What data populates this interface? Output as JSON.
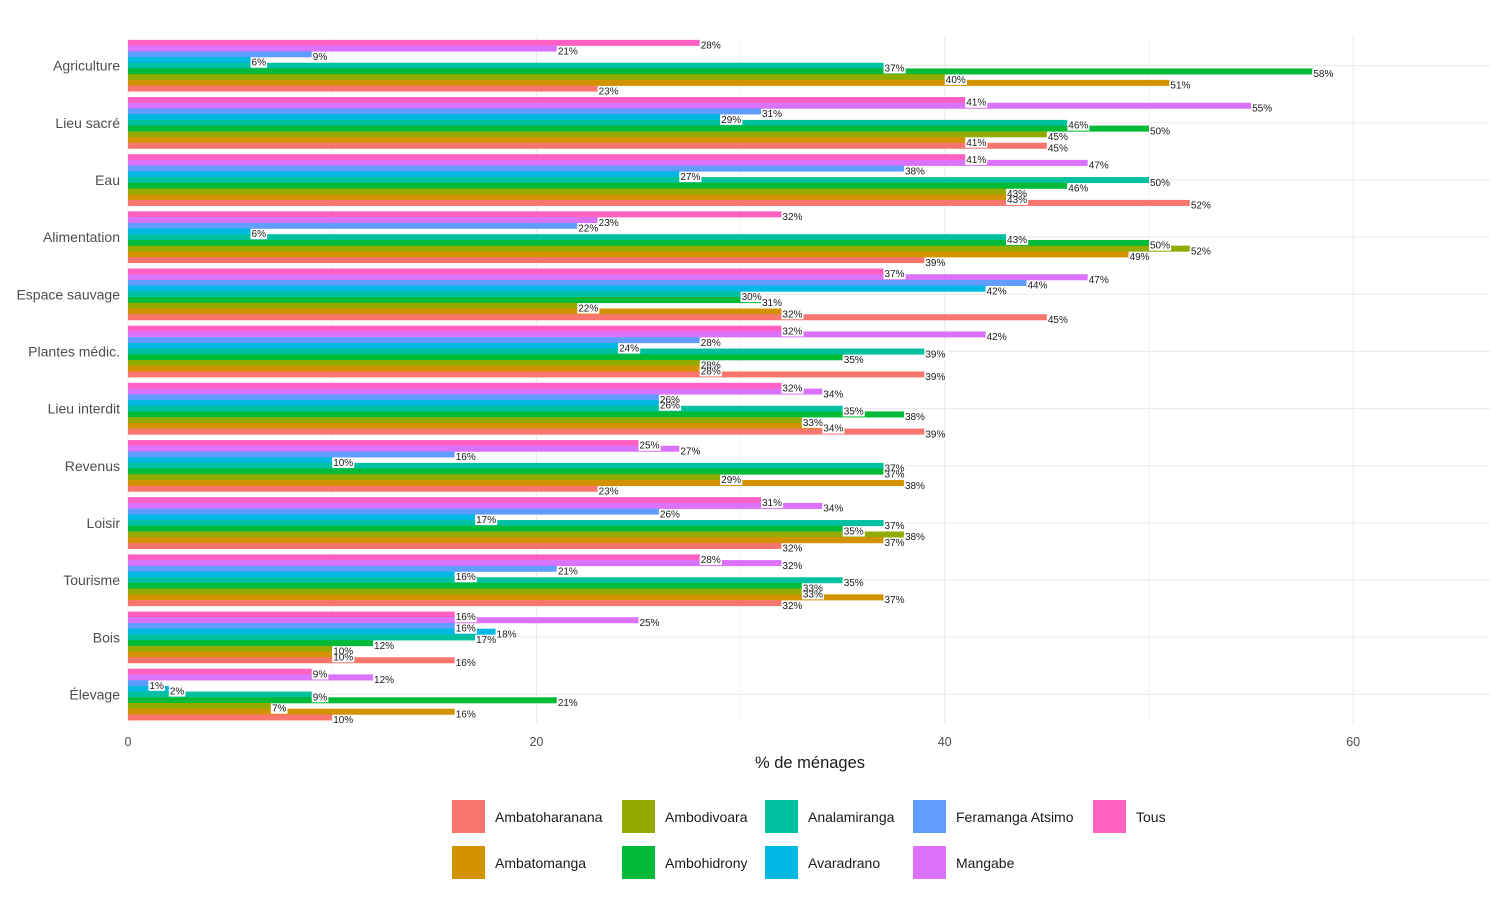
{
  "chart_data": {
    "type": "bar",
    "orientation": "horizontal",
    "title": "",
    "xlabel": "% de ménages",
    "ylabel": "",
    "xlim": [
      0,
      66.7
    ],
    "xticks": [
      0,
      20,
      40,
      60
    ],
    "grid": true,
    "legend_position": "bottom",
    "label_suffix": "%",
    "categories": [
      "Agriculture",
      "Lieu sacré",
      "Eau",
      "Alimentation",
      "Espace sauvage",
      "Plantes médic.",
      "Lieu interdit",
      "Revenus",
      "Loisir",
      "Tourisme",
      "Bois",
      "Élevage"
    ],
    "series": [
      {
        "name": "Ambatoharanana",
        "color": "#F8766D",
        "values": [
          23,
          45,
          52,
          39,
          45,
          39,
          39,
          23,
          32,
          32,
          16,
          10
        ]
      },
      {
        "name": "Ambatomanga",
        "color": "#D39200",
        "values": [
          51,
          41,
          43,
          49,
          32,
          28,
          34,
          38,
          37,
          37,
          10,
          16
        ]
      },
      {
        "name": "Ambodivoara",
        "color": "#93AA00",
        "values": [
          40,
          45,
          43,
          52,
          22,
          28,
          33,
          29,
          38,
          33,
          10,
          7
        ]
      },
      {
        "name": "Ambohidrony",
        "color": "#00BA38",
        "values": [
          58,
          50,
          46,
          50,
          31,
          35,
          38,
          37,
          35,
          33,
          12,
          21
        ]
      },
      {
        "name": "Analamiranga",
        "color": "#00C19F",
        "values": [
          37,
          46,
          50,
          43,
          30,
          39,
          35,
          37,
          37,
          35,
          17,
          9
        ]
      },
      {
        "name": "Avaradrano",
        "color": "#00B9E3",
        "values": [
          6,
          29,
          27,
          6,
          42,
          24,
          26,
          10,
          17,
          16,
          18,
          2
        ]
      },
      {
        "name": "Feramanga Atsimo",
        "color": "#619CFF",
        "values": [
          9,
          31,
          38,
          22,
          44,
          28,
          26,
          16,
          26,
          21,
          16,
          1
        ]
      },
      {
        "name": "Mangabe",
        "color": "#DB72FB",
        "values": [
          21,
          55,
          47,
          23,
          47,
          42,
          34,
          27,
          34,
          32,
          25,
          12
        ]
      },
      {
        "name": "Tous",
        "color": "#FF61C3",
        "values": [
          28,
          41,
          41,
          32,
          37,
          32,
          32,
          25,
          31,
          28,
          16,
          9
        ]
      }
    ]
  },
  "legend": {
    "items": [
      {
        "label": "Ambatoharanana",
        "color": "#F8766D"
      },
      {
        "label": "Ambodivoara",
        "color": "#93AA00"
      },
      {
        "label": "Analamiranga",
        "color": "#00C19F"
      },
      {
        "label": "Feramanga Atsimo",
        "color": "#619CFF"
      },
      {
        "label": "Tous",
        "color": "#FF61C3"
      },
      {
        "label": "Ambatomanga",
        "color": "#D39200"
      },
      {
        "label": "Ambohidrony",
        "color": "#00BA38"
      },
      {
        "label": "Avaradrano",
        "color": "#00B9E3"
      },
      {
        "label": "Mangabe",
        "color": "#DB72FB"
      }
    ]
  }
}
